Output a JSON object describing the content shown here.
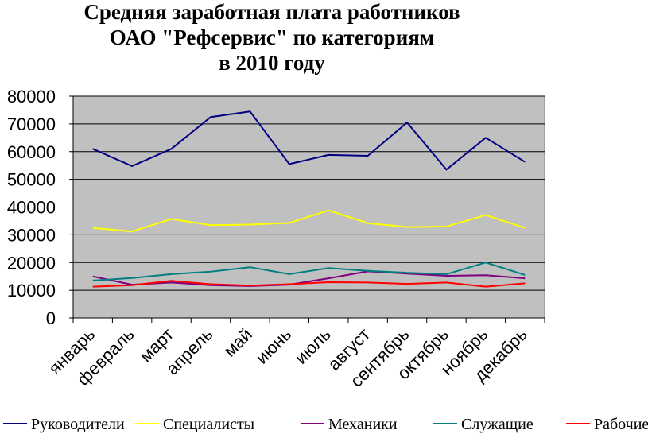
{
  "chart_data": {
    "type": "line",
    "title_lines": [
      "Средняя заработная плата работников",
      "ОАО \"Рефсервис\" по категориям",
      "в 2010 году"
    ],
    "categories": [
      "январь",
      "февраль",
      "март",
      "апрель",
      "май",
      "июнь",
      "июль",
      "август",
      "сентябрь",
      "октябрь",
      "ноябрь",
      "декабрь"
    ],
    "ylim": [
      0,
      80000
    ],
    "yticks": [
      "0",
      "10000",
      "20000",
      "30000",
      "40000",
      "50000",
      "60000",
      "70000",
      "80000"
    ],
    "grid": true,
    "legend_position": "bottom",
    "plot_background": "#c0c0c0",
    "series": [
      {
        "name": "Руководители",
        "color": "#000080",
        "values": [
          61000,
          54800,
          61000,
          72500,
          74500,
          55500,
          58800,
          58500,
          70500,
          53500,
          65000,
          56300
        ]
      },
      {
        "name": "Специалисты",
        "color": "#ffff00",
        "values": [
          32500,
          31200,
          35700,
          33500,
          33700,
          34300,
          38800,
          34200,
          32800,
          33000,
          37100,
          32500
        ]
      },
      {
        "name": "Механики",
        "color": "#800080",
        "values": [
          15000,
          12000,
          12800,
          11800,
          11500,
          12000,
          14300,
          16800,
          16000,
          15200,
          15400,
          14300
        ]
      },
      {
        "name": "Служащие",
        "color": "#008080",
        "values": [
          13500,
          14400,
          15800,
          16700,
          18300,
          15800,
          18000,
          17000,
          16300,
          15800,
          20000,
          15500
        ]
      },
      {
        "name": "Рабочие",
        "color": "#ff0000",
        "values": [
          11300,
          11800,
          13400,
          12200,
          11700,
          12200,
          12900,
          12800,
          12300,
          12800,
          11300,
          12500
        ]
      }
    ]
  }
}
